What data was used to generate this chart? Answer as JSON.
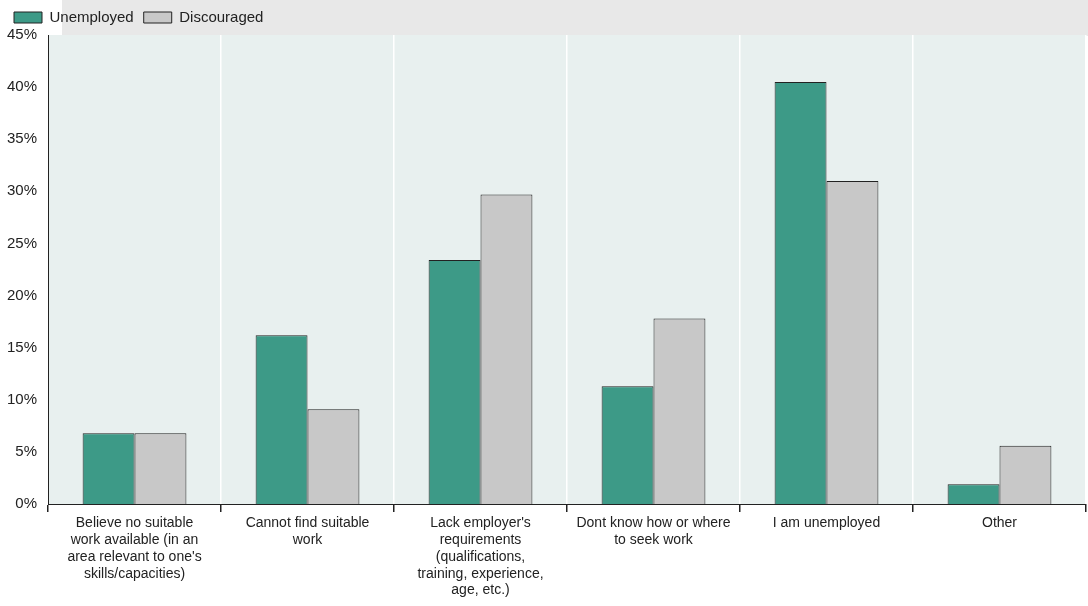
{
  "chart_data": {
    "type": "bar",
    "categories": [
      "Believe no suitable work available (in an area relevant to one's skills/capacities)",
      "Cannot find suitable work",
      "Lack employer's requirements (qualifications, training, experience, age, etc.)",
      "Dont know how or where to seek work",
      "I am unemployed",
      "Other"
    ],
    "series": [
      {
        "name": "Unemployed",
        "color": "#3d9a87",
        "values": [
          6.8,
          16.2,
          23.4,
          11.3,
          40.5,
          1.9
        ]
      },
      {
        "name": "Discouraged",
        "color": "#c8c8c8",
        "values": [
          6.8,
          9.1,
          29.7,
          17.8,
          31.0,
          5.6
        ]
      }
    ],
    "ylim": [
      0,
      45
    ],
    "yticks": [
      {
        "value": 0,
        "label": "0%"
      },
      {
        "value": 5,
        "label": "5%"
      },
      {
        "value": 10,
        "label": "10%"
      },
      {
        "value": 15,
        "label": "15%"
      },
      {
        "value": 20,
        "label": "20%"
      },
      {
        "value": 25,
        "label": "25%"
      },
      {
        "value": 30,
        "label": "30%"
      },
      {
        "value": 35,
        "label": "35%"
      },
      {
        "value": 40,
        "label": "40%"
      },
      {
        "value": 45,
        "label": "45%"
      }
    ],
    "grid": "x",
    "legend": "top left"
  }
}
